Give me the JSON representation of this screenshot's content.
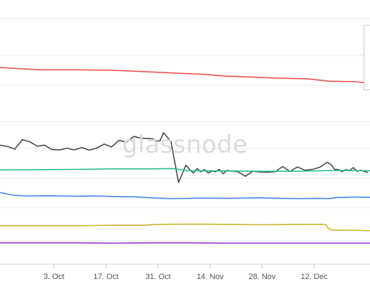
{
  "watermark": "glassnode",
  "chart_data": {
    "type": "line",
    "xlabel": "",
    "ylabel": "",
    "grid": true,
    "legend_placement": "top-right (clipped)",
    "x_domain": [
      -0.5,
      99
    ],
    "y_domain": [
      0,
      100
    ],
    "x_ticks": [
      {
        "label": "3. Oct",
        "x": 14
      },
      {
        "label": "17. Oct",
        "x": 28
      },
      {
        "label": "31. Oct",
        "x": 42
      },
      {
        "label": "14. Nov",
        "x": 56
      },
      {
        "label": "28. Nov",
        "x": 70
      },
      {
        "label": "12. Dec",
        "x": 84
      }
    ],
    "series": [
      {
        "color": "#f0524f",
        "x": [
          -0.5,
          10,
          20,
          30,
          40,
          47,
          54,
          60,
          68,
          75,
          82,
          88,
          95,
          99
        ],
        "y": [
          74.4,
          73.5,
          73.5,
          73.3,
          72.7,
          72.2,
          71.8,
          71.1,
          70.7,
          70.3,
          70.1,
          69.2,
          69.0,
          68.4
        ]
      },
      {
        "color": "#4a4a4a",
        "x": [
          -0.5,
          1.5,
          3.5,
          5.5,
          7.5,
          9.5,
          11.5,
          13.5,
          15.5,
          17.5,
          19.5,
          21.5,
          23.5,
          25.5,
          27.5,
          29.5,
          31.5,
          33.5,
          35.5,
          37.5,
          39.5,
          40.5,
          41.5,
          42.5,
          43.5,
          45.5,
          47.5,
          49.5,
          50.5,
          51.5,
          52.5,
          53.5,
          54.5,
          55.5,
          56.5,
          57.5,
          58.5,
          59.5,
          60.5,
          61.5,
          63.5,
          65.5,
          67.5,
          69.5,
          71.5,
          73.5,
          75.5,
          77.5,
          79.5,
          81.5,
          83.5,
          85.5,
          87.5,
          88.5,
          89.5,
          90.5,
          91.5,
          92.5,
          93.5,
          94.5,
          95.5,
          96.5,
          97.5,
          98.5
        ],
        "y": [
          44.9,
          44.4,
          43.4,
          47.0,
          46.2,
          44.5,
          44.9,
          43.2,
          43.1,
          43.7,
          43.1,
          44.0,
          43.0,
          43.8,
          45.3,
          44.2,
          46.7,
          46.0,
          48.2,
          47.5,
          47.4,
          47.3,
          46.5,
          46.5,
          49.6,
          46.2,
          30.7,
          37.3,
          35.6,
          34.3,
          36.0,
          34.8,
          35.6,
          34.3,
          35.1,
          34.8,
          35.7,
          34.0,
          35.3,
          35.1,
          34.8,
          33.1,
          35.0,
          34.7,
          34.6,
          34.8,
          36.8,
          34.9,
          36.6,
          35.4,
          35.7,
          36.5,
          38.4,
          37.5,
          35.7,
          35.6,
          34.9,
          35.6,
          35.2,
          36.4,
          35.0,
          35.4,
          34.9,
          34.5
        ]
      },
      {
        "color": "#2bbf8a",
        "x": [
          -0.5,
          10,
          20,
          30,
          40,
          46,
          50,
          60,
          70,
          80,
          90,
          99
        ],
        "y": [
          35.5,
          35.6,
          35.7,
          35.9,
          35.9,
          36.0,
          35.2,
          35.1,
          35.0,
          35.0,
          35.3,
          35.2
        ]
      },
      {
        "color": "#4285e8",
        "x": [
          -0.5,
          3,
          7,
          13,
          16,
          20,
          25,
          30,
          35,
          40,
          45,
          50,
          55,
          60,
          65,
          70,
          75,
          80,
          85,
          88,
          90,
          92,
          95,
          99
        ],
        "y": [
          26.9,
          25.9,
          25.6,
          25.7,
          25.6,
          25.5,
          25.6,
          25.4,
          25.3,
          24.9,
          24.6,
          24.7,
          24.8,
          24.7,
          24.8,
          24.9,
          24.7,
          24.6,
          24.7,
          24.6,
          25.0,
          25.1,
          25.2,
          25.1
        ]
      },
      {
        "color": "#c9b52a",
        "x": [
          -0.5,
          10,
          20,
          30,
          38,
          42,
          48,
          55,
          60,
          70,
          80,
          87,
          88,
          89,
          92,
          95,
          99
        ],
        "y": [
          14.3,
          14.3,
          14.3,
          14.5,
          14.5,
          14.8,
          14.9,
          14.9,
          14.8,
          14.7,
          14.8,
          14.8,
          13.0,
          12.7,
          12.6,
          12.6,
          12.4
        ]
      },
      {
        "color": "#a531c8",
        "x": [
          -0.5,
          10,
          20,
          30,
          40,
          50,
          60,
          70,
          80,
          90,
          99
        ],
        "y": [
          7.8,
          7.8,
          7.8,
          7.7,
          7.8,
          7.8,
          7.7,
          7.7,
          7.7,
          7.7,
          7.7
        ]
      }
    ]
  }
}
